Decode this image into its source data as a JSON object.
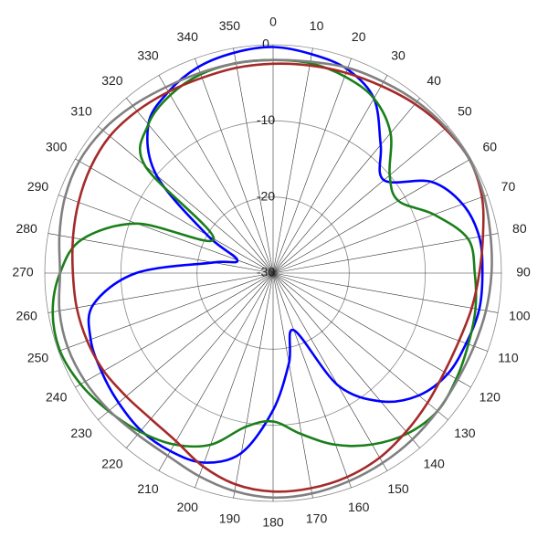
{
  "chart_data": {
    "type": "polar",
    "x": [
      0,
      10,
      20,
      30,
      40,
      50,
      60,
      70,
      80,
      90,
      100,
      110,
      120,
      130,
      140,
      150,
      160,
      170,
      180,
      190,
      200,
      210,
      220,
      230,
      240,
      250,
      260,
      270,
      280,
      290,
      300,
      310,
      320,
      330,
      340,
      350
    ],
    "xticks": [
      0,
      10,
      20,
      30,
      40,
      50,
      60,
      70,
      80,
      90,
      100,
      110,
      120,
      130,
      140,
      150,
      160,
      170,
      180,
      190,
      200,
      210,
      220,
      230,
      240,
      250,
      260,
      270,
      280,
      290,
      300,
      310,
      320,
      330,
      340,
      350
    ],
    "ylim": [
      -30,
      0
    ],
    "yticks": [
      -30,
      -20,
      -10,
      0
    ],
    "grid": true,
    "series": [
      {
        "color": "#0000ff",
        "values": [
          -0.3,
          -0.8,
          -1.5,
          -3.5,
          -8,
          -11,
          -6,
          -3.5,
          -2.5,
          -2.5,
          -2.5,
          -3,
          -3.5,
          -5,
          -8,
          -13,
          -22,
          -18,
          -12,
          -6,
          -3.5,
          -3,
          -3,
          -3.5,
          -4,
          -4.5,
          -6,
          -12,
          -22,
          -25,
          -20,
          -10,
          -4.5,
          -2.5,
          -1.2,
          -0.6
        ]
      },
      {
        "color": "#1a7f1a",
        "values": [
          -2,
          -2,
          -2.5,
          -3.5,
          -6,
          -10,
          -11,
          -7.5,
          -4,
          -3.5,
          -3,
          -2.7,
          -2.2,
          -1.8,
          -2.5,
          -4,
          -6,
          -8.5,
          -10.5,
          -9.5,
          -6,
          -4,
          -2.8,
          -1.8,
          -0.8,
          -0.2,
          -0.6,
          -2,
          -4.5,
          -11,
          -21,
          -8,
          -4.5,
          -3,
          -2.2,
          -2
        ]
      },
      {
        "color": "#a52a2a",
        "values": [
          -2.5,
          -2.3,
          -2,
          -1.6,
          -1,
          -0.5,
          -0.2,
          -0.8,
          -2,
          -2.9,
          -3.5,
          -4,
          -4,
          -3.5,
          -2.8,
          -2,
          -1.5,
          -1.3,
          -1.3,
          -1.8,
          -3,
          -4.5,
          -5,
          -4.8,
          -4.3,
          -4,
          -3.8,
          -3.7,
          -3.3,
          -2.8,
          -2.3,
          -2,
          -2.2,
          -2.5,
          -2.7,
          -2.6
        ]
      },
      {
        "color": "#808080",
        "values": [
          -2,
          -1.8,
          -1.3,
          -1,
          -0.6,
          -0.3,
          -0.2,
          -0.5,
          -1,
          -1.3,
          -1.6,
          -1.9,
          -2,
          -1.8,
          -1.5,
          -1.2,
          -0.9,
          -0.6,
          -0.5,
          -0.9,
          -1.6,
          -2.3,
          -2.3,
          -1.9,
          -1.5,
          -1.3,
          -1.5,
          -2,
          -1.5,
          -0.9,
          -0.6,
          -0.8,
          -1.3,
          -1.8,
          -2,
          -2
        ]
      }
    ]
  }
}
